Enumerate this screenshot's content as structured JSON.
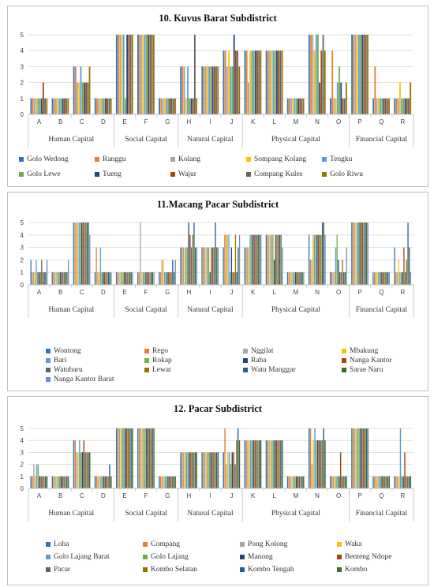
{
  "chart_data": [
    {
      "type": "bar",
      "title": "10. Kuvus Barat Subdistrict",
      "categories": [
        "A",
        "B",
        "C",
        "D",
        "E",
        "F",
        "G",
        "H",
        "I",
        "J",
        "K",
        "L",
        "M",
        "N",
        "O",
        "P",
        "Q",
        "R"
      ],
      "groups": [
        {
          "label": "Human Capital",
          "categories": [
            "A",
            "B",
            "C",
            "D"
          ]
        },
        {
          "label": "Social Capital",
          "categories": [
            "E",
            "F",
            "G"
          ]
        },
        {
          "label": "Natural Capital",
          "categories": [
            "H",
            "I",
            "J"
          ]
        },
        {
          "label": "Physical Capital",
          "categories": [
            "K",
            "L",
            "M",
            "N",
            "O"
          ]
        },
        {
          "label": "Financial Capital",
          "categories": [
            "P",
            "Q",
            "R"
          ]
        }
      ],
      "ylim": [
        0,
        5
      ],
      "yticks": [
        0,
        1,
        2,
        3,
        4,
        5
      ],
      "legend_position": "bottom",
      "series": [
        {
          "name": "Golo Wedong",
          "color": "#2e75b6",
          "values": [
            1,
            1,
            3,
            1,
            5,
            5,
            1,
            3,
            3,
            4,
            4,
            4,
            1,
            5,
            1,
            5,
            1,
            1
          ]
        },
        {
          "name": "Ranggu",
          "color": "#ed7d31",
          "values": [
            1,
            1,
            3,
            1,
            5,
            5,
            1,
            3,
            3,
            4,
            4,
            4,
            1,
            5,
            4,
            5,
            3,
            1
          ]
        },
        {
          "name": "Kolang",
          "color": "#a5a5a5",
          "values": [
            1,
            1,
            2,
            1,
            5,
            5,
            1,
            3,
            3,
            3,
            2,
            4,
            1,
            5,
            1,
            5,
            1,
            1
          ]
        },
        {
          "name": "Sompang Kolang",
          "color": "#ffc000",
          "values": [
            1,
            1,
            2,
            1,
            5,
            5,
            1,
            1,
            3,
            4,
            4,
            4,
            1,
            4,
            1,
            5,
            1,
            2
          ]
        },
        {
          "name": "Tengku",
          "color": "#5b9bd5",
          "values": [
            1,
            1,
            3,
            1,
            5,
            5,
            1,
            3,
            3,
            3,
            4,
            4,
            1,
            5,
            2,
            5,
            1,
            1
          ]
        },
        {
          "name": "Golo Lewe",
          "color": "#70ad47",
          "values": [
            1,
            1,
            2,
            1,
            1,
            5,
            1,
            1,
            3,
            3,
            4,
            4,
            1,
            5,
            3,
            5,
            1,
            1
          ]
        },
        {
          "name": "Tueng",
          "color": "#264478",
          "values": [
            1,
            1,
            2,
            1,
            5,
            5,
            1,
            1,
            3,
            5,
            4,
            4,
            1,
            2,
            2,
            5,
            1,
            1
          ]
        },
        {
          "name": "Wajur",
          "color": "#9e480e",
          "values": [
            2,
            1,
            2,
            1,
            5,
            5,
            1,
            1,
            3,
            4,
            4,
            4,
            1,
            4,
            1,
            5,
            1,
            1
          ]
        },
        {
          "name": "Compang Kules",
          "color": "#636363",
          "values": [
            1,
            1,
            2,
            1,
            5,
            5,
            1,
            5,
            3,
            4,
            4,
            4,
            1,
            5,
            1,
            5,
            1,
            1
          ]
        },
        {
          "name": "Golo Riwu",
          "color": "#997300",
          "values": [
            1,
            1,
            3,
            1,
            5,
            5,
            1,
            1,
            3,
            3,
            4,
            4,
            1,
            4,
            2,
            5,
            1,
            2
          ]
        }
      ]
    },
    {
      "type": "bar",
      "title": "11.Macang Pacar Subdistrict",
      "categories": [
        "A",
        "B",
        "C",
        "D",
        "E",
        "F",
        "G",
        "H",
        "I",
        "J",
        "K",
        "L",
        "M",
        "N",
        "O",
        "P",
        "Q",
        "R"
      ],
      "groups": [
        {
          "label": "Human Capital",
          "categories": [
            "A",
            "B",
            "C",
            "D"
          ]
        },
        {
          "label": "Social Capital",
          "categories": [
            "E",
            "F",
            "G"
          ]
        },
        {
          "label": "Natural Capital",
          "categories": [
            "H",
            "I",
            "J"
          ]
        },
        {
          "label": "Physical Capital",
          "categories": [
            "K",
            "L",
            "M",
            "N",
            "O"
          ]
        },
        {
          "label": "Financial Capital",
          "categories": [
            "P",
            "Q",
            "R"
          ]
        }
      ],
      "ylim": [
        0,
        5
      ],
      "yticks": [
        0,
        1,
        2,
        3,
        4,
        5
      ],
      "legend_position": "bottom",
      "series": [
        {
          "name": "Wontong",
          "color": "#2e75b6",
          "values": [
            2,
            1,
            5,
            1,
            1,
            1,
            1,
            3,
            3,
            3,
            3,
            4,
            1,
            4,
            1,
            5,
            1,
            3
          ]
        },
        {
          "name": "Rego",
          "color": "#ed7d31",
          "values": [
            1,
            1,
            5,
            3,
            1,
            1,
            1,
            3,
            3,
            4,
            3,
            4,
            1,
            2,
            1,
            5,
            1,
            1
          ]
        },
        {
          "name": "Nggilat",
          "color": "#a5a5a5",
          "values": [
            1,
            1,
            5,
            1,
            1,
            5,
            2,
            3,
            3,
            4,
            3,
            4,
            1,
            2,
            1,
            5,
            1,
            1
          ]
        },
        {
          "name": "Mbakung",
          "color": "#ffc000",
          "values": [
            1,
            1,
            5,
            1,
            1,
            1,
            2,
            3,
            3,
            4,
            3,
            4,
            1,
            4,
            1,
            5,
            1,
            2
          ]
        },
        {
          "name": "Bari",
          "color": "#5b9bd5",
          "values": [
            2,
            1,
            5,
            3,
            1,
            1,
            1,
            3,
            3,
            4,
            4,
            4,
            1,
            4,
            3,
            5,
            1,
            1
          ]
        },
        {
          "name": "Rokap",
          "color": "#70ad47",
          "values": [
            1,
            1,
            5,
            1,
            1,
            1,
            1,
            3,
            3,
            1,
            4,
            4,
            1,
            4,
            4,
            5,
            1,
            1
          ]
        },
        {
          "name": "Raba",
          "color": "#264478",
          "values": [
            1,
            1,
            5,
            1,
            1,
            1,
            1,
            5,
            1,
            3,
            4,
            2,
            1,
            4,
            2,
            5,
            1,
            1
          ]
        },
        {
          "name": "Nanga Kantor",
          "color": "#9e480e",
          "values": [
            1,
            1,
            5,
            1,
            1,
            1,
            1,
            4,
            3,
            1,
            4,
            4,
            1,
            4,
            1,
            5,
            1,
            3
          ]
        },
        {
          "name": "Watubaru",
          "color": "#636363",
          "values": [
            2,
            1,
            5,
            1,
            1,
            1,
            1,
            3,
            3,
            1,
            4,
            4,
            1,
            4,
            1,
            5,
            1,
            1
          ]
        },
        {
          "name": "Lewat",
          "color": "#997300",
          "values": [
            1,
            1,
            5,
            1,
            1,
            1,
            1,
            4,
            3,
            4,
            4,
            4,
            1,
            4,
            2,
            5,
            1,
            2
          ]
        },
        {
          "name": "Watu Manggar",
          "color": "#255e91",
          "values": [
            1,
            1,
            5,
            1,
            1,
            1,
            2,
            5,
            5,
            1,
            4,
            4,
            1,
            5,
            1,
            5,
            1,
            5
          ]
        },
        {
          "name": "Sarae Naru",
          "color": "#43682b",
          "values": [
            1,
            1,
            5,
            1,
            1,
            1,
            1,
            3,
            3,
            3,
            4,
            4,
            1,
            5,
            1,
            5,
            1,
            3
          ]
        },
        {
          "name": "Nanga Kantor Barat",
          "color": "#698ed0",
          "values": [
            2,
            2,
            4,
            1,
            1,
            1,
            2,
            3,
            3,
            4,
            4,
            3,
            1,
            4,
            3,
            5,
            1,
            1
          ]
        }
      ]
    },
    {
      "type": "bar",
      "title": "12. Pacar Subdistrict",
      "categories": [
        "A",
        "B",
        "C",
        "D",
        "E",
        "F",
        "G",
        "H",
        "I",
        "J",
        "K",
        "L",
        "M",
        "N",
        "O",
        "P",
        "Q",
        "R"
      ],
      "groups": [
        {
          "label": "Human Capital",
          "categories": [
            "A",
            "B",
            "C",
            "D"
          ]
        },
        {
          "label": "Social Capital",
          "categories": [
            "E",
            "F",
            "G"
          ]
        },
        {
          "label": "Natural Capital",
          "categories": [
            "H",
            "I",
            "J"
          ]
        },
        {
          "label": "Physical Capital",
          "categories": [
            "K",
            "L",
            "M",
            "N",
            "O"
          ]
        },
        {
          "label": "Financial Capital",
          "categories": [
            "P",
            "Q",
            "R"
          ]
        }
      ],
      "ylim": [
        0,
        5
      ],
      "yticks": [
        0,
        1,
        2,
        3,
        4,
        5
      ],
      "legend_position": "bottom",
      "series": [
        {
          "name": "Loha",
          "color": "#2e75b6",
          "values": [
            1,
            1,
            4,
            1,
            5,
            5,
            1,
            3,
            3,
            3,
            4,
            4,
            1,
            5,
            1,
            5,
            1,
            1
          ]
        },
        {
          "name": "Compang",
          "color": "#ed7d31",
          "values": [
            1,
            1,
            4,
            1,
            5,
            5,
            1,
            3,
            3,
            5,
            4,
            4,
            1,
            5,
            1,
            5,
            1,
            1
          ]
        },
        {
          "name": "Pong Kolong",
          "color": "#a5a5a5",
          "values": [
            2,
            1,
            3,
            1,
            5,
            5,
            1,
            3,
            3,
            2,
            4,
            4,
            1,
            2,
            1,
            5,
            1,
            1
          ]
        },
        {
          "name": "Waka",
          "color": "#ffc000",
          "values": [
            1,
            1,
            3,
            1,
            5,
            5,
            1,
            3,
            3,
            3,
            4,
            4,
            1,
            4,
            1,
            5,
            1,
            1
          ]
        },
        {
          "name": "Golo Lajang Barat",
          "color": "#5b9bd5",
          "values": [
            2,
            1,
            4,
            1,
            5,
            5,
            1,
            3,
            3,
            3,
            4,
            4,
            1,
            5,
            1,
            5,
            1,
            5
          ]
        },
        {
          "name": "Golo Lajang",
          "color": "#70ad47",
          "values": [
            2,
            1,
            3,
            1,
            5,
            5,
            1,
            3,
            3,
            2,
            4,
            4,
            1,
            4,
            1,
            5,
            1,
            1
          ]
        },
        {
          "name": "Manong",
          "color": "#264478",
          "values": [
            1,
            1,
            3,
            1,
            5,
            5,
            1,
            3,
            3,
            3,
            4,
            4,
            1,
            4,
            1,
            5,
            1,
            1
          ]
        },
        {
          "name": "Benteng Ndope",
          "color": "#9e480e",
          "values": [
            1,
            1,
            4,
            1,
            5,
            5,
            1,
            3,
            3,
            3,
            4,
            4,
            1,
            4,
            3,
            5,
            1,
            3
          ]
        },
        {
          "name": "Pacar",
          "color": "#636363",
          "values": [
            1,
            1,
            3,
            1,
            5,
            5,
            1,
            3,
            3,
            2,
            4,
            4,
            1,
            4,
            1,
            5,
            1,
            1
          ]
        },
        {
          "name": "Kombo Selatan",
          "color": "#997300",
          "values": [
            1,
            1,
            3,
            1,
            5,
            5,
            1,
            3,
            3,
            4,
            4,
            4,
            1,
            4,
            1,
            5,
            1,
            1
          ]
        },
        {
          "name": "Kombo Tengah",
          "color": "#255e91",
          "values": [
            1,
            1,
            3,
            2,
            5,
            5,
            1,
            3,
            3,
            5,
            4,
            4,
            1,
            5,
            1,
            5,
            1,
            1
          ]
        },
        {
          "name": "Kombo",
          "color": "#43682b",
          "values": [
            1,
            1,
            3,
            1,
            5,
            5,
            1,
            3,
            3,
            4,
            4,
            4,
            1,
            4,
            1,
            5,
            1,
            1
          ]
        }
      ]
    }
  ]
}
